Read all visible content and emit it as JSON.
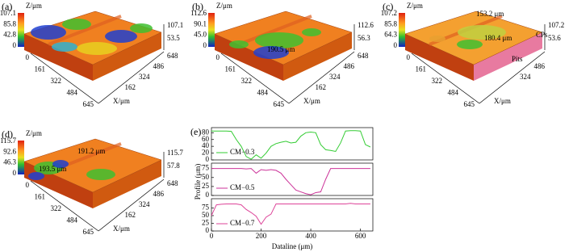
{
  "panels": [
    {
      "label": "(a)",
      "z_label": "Z/μm",
      "x_label": "X/μm",
      "colorbar_ticks": [
        "107.1",
        "85.8",
        "42.8",
        "0"
      ],
      "z_ticks": [
        "107.1",
        "53.5"
      ],
      "y_ticks": [
        "648",
        "486",
        "324",
        "162"
      ],
      "x_ticks": [
        "0",
        "161",
        "322",
        "484",
        "645"
      ],
      "annotations": []
    },
    {
      "label": "(b)",
      "z_label": "Z/μm",
      "x_label": "X/μm",
      "colorbar_ticks": [
        "112.6",
        "90.1",
        "45.0",
        "0"
      ],
      "z_ticks": [
        "112.6",
        "56.3"
      ],
      "y_ticks": [
        "648",
        "486",
        "324",
        "162"
      ],
      "x_ticks": [
        "0",
        "161",
        "322",
        "484",
        "645"
      ],
      "annotations": [
        "190.5 μm"
      ]
    },
    {
      "label": "(c)",
      "z_label": "Z/μm",
      "x_label": "X/μm",
      "colorbar_ticks": [
        "107.2",
        "85.8",
        "64.3",
        "0"
      ],
      "z_ticks": [
        "107.2",
        "53.6"
      ],
      "y_ticks": [
        "486",
        "324"
      ],
      "x_ticks": [
        "0",
        "161",
        "322",
        "484",
        "645"
      ],
      "annotations": [
        "153.2 μm",
        "180.4 μm",
        "CPs",
        "Pits"
      ]
    },
    {
      "label": "(d)",
      "z_label": "Z/μm",
      "x_label": "X/μm",
      "colorbar_ticks": [
        "115.7",
        "92.6",
        "46.3",
        "0"
      ],
      "z_ticks": [
        "115.7",
        "57.8"
      ],
      "y_ticks": [
        "648",
        "486",
        "324",
        "162"
      ],
      "x_ticks": [
        "0",
        "161",
        "322",
        "484",
        "645"
      ],
      "annotations": [
        "193.5 μm",
        "191.2 μm"
      ]
    }
  ],
  "chart_data": {
    "type": "line",
    "label": "(e)",
    "x_label": "Dataline (μm)",
    "y_label": "Profile (μm)",
    "x": [
      0,
      20,
      40,
      60,
      80,
      100,
      120,
      140,
      160,
      180,
      200,
      220,
      240,
      260,
      280,
      300,
      320,
      340,
      360,
      380,
      400,
      420,
      440,
      460,
      480,
      500,
      520,
      540,
      560,
      580,
      600,
      620,
      640
    ],
    "xlim": [
      0,
      650
    ],
    "xticks": [
      0,
      200,
      400,
      600
    ],
    "series": [
      {
        "name": "CM−0.3",
        "color": "#33cc33",
        "ylim": [
          0,
          95
        ],
        "yticks": [
          0,
          20,
          40,
          60,
          80
        ],
        "values": [
          85,
          85,
          85,
          85,
          84,
          60,
          40,
          10,
          2,
          15,
          5,
          20,
          40,
          48,
          52,
          55,
          50,
          52,
          70,
          80,
          82,
          80,
          45,
          30,
          28,
          25,
          50,
          85,
          86,
          86,
          85,
          45,
          38
        ]
      },
      {
        "name": "CM−0.5",
        "color": "#cc3399",
        "ylim": [
          0,
          90
        ],
        "yticks": [
          0,
          25,
          50,
          75
        ],
        "values": [
          75,
          75,
          75,
          75,
          75,
          75,
          75,
          74,
          75,
          62,
          72,
          70,
          72,
          70,
          62,
          45,
          30,
          15,
          10,
          5,
          2,
          8,
          10,
          45,
          75,
          75,
          75,
          75,
          75,
          75,
          75,
          75,
          75
        ]
      },
      {
        "name": "CM−0.7",
        "color": "#dd4499",
        "ylim": [
          0,
          105
        ],
        "yticks": [
          0,
          25,
          50,
          75
        ],
        "values": [
          50,
          85,
          87,
          88,
          88,
          88,
          85,
          70,
          60,
          48,
          22,
          45,
          55,
          88,
          88,
          88,
          88,
          88,
          88,
          88,
          88,
          88,
          88,
          88,
          88,
          88,
          88,
          88,
          90,
          88,
          88,
          88,
          88
        ]
      }
    ]
  }
}
